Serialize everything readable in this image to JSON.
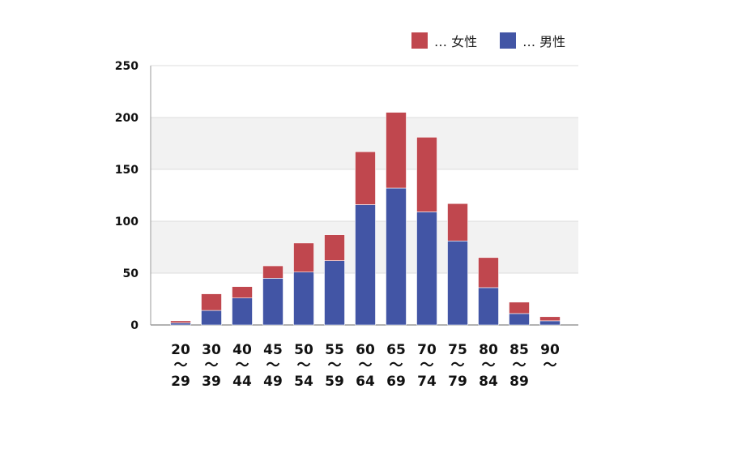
{
  "chart_data": {
    "type": "bar",
    "stacked": true,
    "categories": [
      {
        "top": "20",
        "sep": "〜",
        "bottom": "29"
      },
      {
        "top": "30",
        "sep": "〜",
        "bottom": "39"
      },
      {
        "top": "40",
        "sep": "〜",
        "bottom": "44"
      },
      {
        "top": "45",
        "sep": "〜",
        "bottom": "49"
      },
      {
        "top": "50",
        "sep": "〜",
        "bottom": "54"
      },
      {
        "top": "55",
        "sep": "〜",
        "bottom": "59"
      },
      {
        "top": "60",
        "sep": "〜",
        "bottom": "64"
      },
      {
        "top": "65",
        "sep": "〜",
        "bottom": "69"
      },
      {
        "top": "70",
        "sep": "〜",
        "bottom": "74"
      },
      {
        "top": "75",
        "sep": "〜",
        "bottom": "79"
      },
      {
        "top": "80",
        "sep": "〜",
        "bottom": "84"
      },
      {
        "top": "85",
        "sep": "〜",
        "bottom": "89"
      },
      {
        "top": "90",
        "sep": "〜",
        "bottom": ""
      }
    ],
    "series": [
      {
        "name": "… 男性",
        "color": "#4255a5",
        "values": [
          2,
          14,
          26,
          45,
          51,
          62,
          116,
          132,
          109,
          81,
          36,
          11,
          4
        ]
      },
      {
        "name": "… 女性",
        "color": "#c0474e",
        "values": [
          2,
          16,
          11,
          12,
          28,
          25,
          51,
          73,
          72,
          36,
          29,
          11,
          4
        ]
      }
    ],
    "ylim": [
      0,
      250
    ],
    "yticks": [
      0,
      50,
      100,
      150,
      200,
      250
    ],
    "grid": true,
    "legend_position": "top-right",
    "colors": {
      "band": "#f2f2f2",
      "grid": "#dcdcdc",
      "axis": "#999999"
    }
  }
}
